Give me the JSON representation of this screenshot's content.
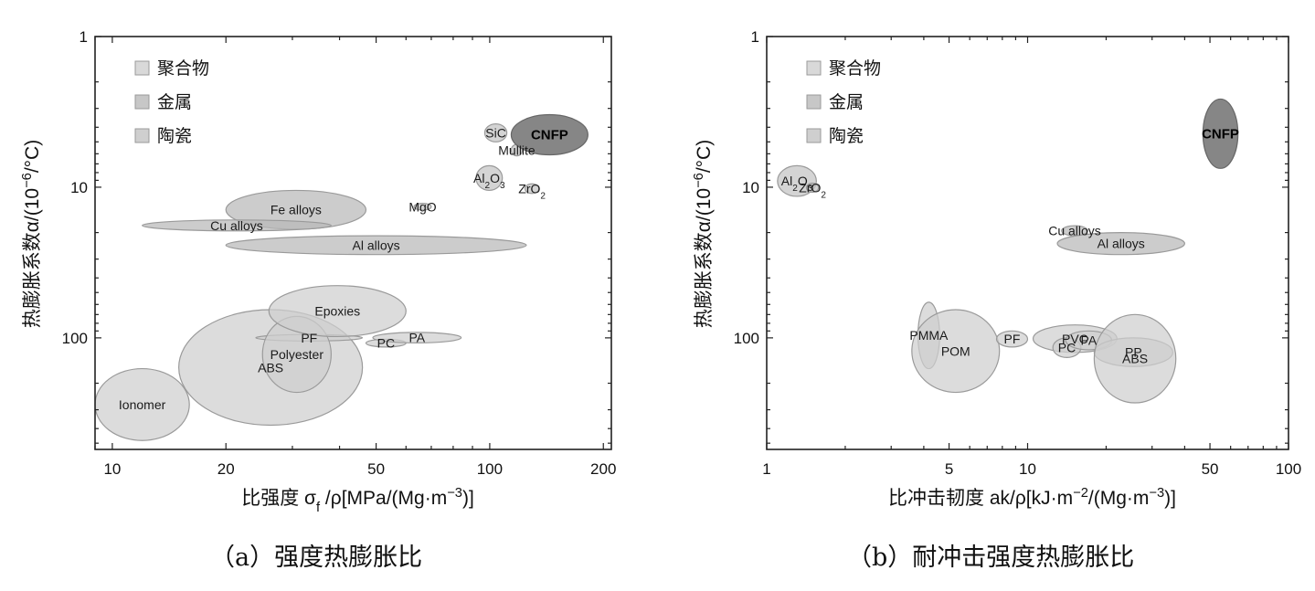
{
  "chart_data": [
    {
      "type": "bubble",
      "caption": "（a）强度热膨胀比",
      "xlabel": "比强度  σ_f /ρ[MPa/(Mg·m^-3)]",
      "ylabel": "热膨胀系数α/(10^-6/°C)",
      "xscale": "log",
      "yscale": "log",
      "y_inverted": true,
      "xlim": [
        9,
        210
      ],
      "ylim": [
        1,
        550
      ],
      "xticks": [
        10,
        20,
        50,
        100,
        200
      ],
      "yticks": [
        1,
        10,
        100
      ],
      "legend": [
        "聚合物",
        "金属",
        "陶瓷"
      ],
      "legend_position": "top-left",
      "materials": [
        {
          "label": "Ionomer",
          "group": "聚合物",
          "x_range": [
            9,
            16
          ],
          "y_range": [
            160,
            480
          ]
        },
        {
          "label": "ABS",
          "group": "聚合物",
          "x_range": [
            15,
            46
          ],
          "y_range": [
            65,
            380
          ]
        },
        {
          "label": "PF",
          "group": "聚合物",
          "x_range": [
            24,
            46
          ],
          "y_range": [
            95,
            105
          ]
        },
        {
          "label": "Polyester",
          "group": "聚合物",
          "x_range": [
            25,
            38
          ],
          "y_range": [
            72,
            230
          ]
        },
        {
          "label": "Epoxies",
          "group": "聚合物",
          "x_range": [
            26,
            60
          ],
          "y_range": [
            45,
            98
          ]
        },
        {
          "label": "PC",
          "group": "聚合物",
          "x_range": [
            47,
            60
          ],
          "y_range": [
            102,
            115
          ]
        },
        {
          "label": "PA",
          "group": "聚合物",
          "x_range": [
            49,
            84
          ],
          "y_range": [
            92,
            108
          ]
        },
        {
          "label": "Fe alloys",
          "group": "金属",
          "x_range": [
            20,
            47
          ],
          "y_range": [
            10.5,
            19
          ]
        },
        {
          "label": "Cu alloys",
          "group": "金属",
          "x_range": [
            12,
            38
          ],
          "y_range": [
            16.5,
            19.5
          ]
        },
        {
          "label": "Al alloys",
          "group": "金属",
          "x_range": [
            20,
            125
          ],
          "y_range": [
            21,
            28
          ]
        },
        {
          "label": "MgO",
          "group": "陶瓷",
          "x_range": [
            63,
            70
          ],
          "y_range": [
            12.8,
            14.2
          ]
        },
        {
          "label": "SiC",
          "group": "陶瓷",
          "x_range": [
            97,
            111
          ],
          "y_range": [
            3.8,
            5.0
          ]
        },
        {
          "label": "Mullite",
          "group": "陶瓷",
          "x_range": [
            114,
            122
          ],
          "y_range": [
            5.2,
            6.2
          ]
        },
        {
          "label": "Al2O3",
          "group": "陶瓷",
          "x_range": [
            92,
            108
          ],
          "y_range": [
            7.2,
            10.5
          ]
        },
        {
          "label": "ZrO2",
          "group": "陶瓷",
          "x_range": [
            124,
            135
          ],
          "y_range": [
            9.5,
            11
          ]
        },
        {
          "label": "CNFP",
          "group": "CNFP",
          "x_range": [
            114,
            182
          ],
          "y_range": [
            3.3,
            6.1
          ]
        }
      ]
    },
    {
      "type": "bubble",
      "caption": "（b）耐冲击强度热膨胀比",
      "xlabel": "比冲击韧度 ak/ρ[kJ·m^-2/(Mg·m^-3)]",
      "ylabel": "热膨胀系数α/(10^-6/°C)",
      "xscale": "log",
      "yscale": "log",
      "y_inverted": true,
      "xlim": [
        1,
        100
      ],
      "ylim": [
        1,
        550
      ],
      "xticks": [
        1,
        5,
        10,
        50,
        100
      ],
      "yticks": [
        1,
        10,
        100
      ],
      "legend": [
        "聚合物",
        "金属",
        "陶瓷"
      ],
      "legend_position": "top-left",
      "materials": [
        {
          "label": "Al2O3",
          "group": "陶瓷",
          "x_range": [
            1.1,
            1.55
          ],
          "y_range": [
            7.2,
            11.5
          ]
        },
        {
          "label": "ZrO2",
          "group": "陶瓷",
          "x_range": [
            1.42,
            1.58
          ],
          "y_range": [
            9.4,
            10.8
          ]
        },
        {
          "label": "Cu alloys",
          "group": "金属",
          "x_range": [
            13.5,
            17
          ],
          "y_range": [
            18,
            21
          ]
        },
        {
          "label": "Al alloys",
          "group": "金属",
          "x_range": [
            13,
            40
          ],
          "y_range": [
            20,
            28
          ]
        },
        {
          "label": "PMMA",
          "group": "聚合物",
          "x_range": [
            3.8,
            4.6
          ],
          "y_range": [
            58,
            160
          ]
        },
        {
          "label": "POM",
          "group": "聚合物",
          "x_range": [
            3.6,
            7.8
          ],
          "y_range": [
            65,
            230
          ]
        },
        {
          "label": "PF",
          "group": "聚合物",
          "x_range": [
            7.6,
            10
          ],
          "y_range": [
            90,
            115
          ]
        },
        {
          "label": "PVC",
          "group": "聚合物",
          "x_range": [
            10.5,
            22
          ],
          "y_range": [
            82,
            125
          ]
        },
        {
          "label": "PC",
          "group": "聚合物",
          "x_range": [
            12.5,
            16
          ],
          "y_range": [
            100,
            135
          ]
        },
        {
          "label": "PA",
          "group": "聚合物",
          "x_range": [
            14,
            21
          ],
          "y_range": [
            90,
            120
          ]
        },
        {
          "label": "PP",
          "group": "聚合物",
          "x_range": [
            18,
            36
          ],
          "y_range": [
            100,
            155
          ]
        },
        {
          "label": "ABS",
          "group": "聚合物",
          "x_range": [
            18,
            37
          ],
          "y_range": [
            70,
            270
          ]
        },
        {
          "label": "CNFP",
          "group": "CNFP",
          "x_range": [
            47,
            64
          ],
          "y_range": [
            2.6,
            7.5
          ]
        }
      ]
    }
  ],
  "colors": {
    "聚合物": "#cfcfcf",
    "金属": "#b9b9b9",
    "陶瓷": "#c3c3c3",
    "CNFP": "#7f7f7f",
    "outline": "#9a9a9a",
    "axis": "#222222"
  }
}
